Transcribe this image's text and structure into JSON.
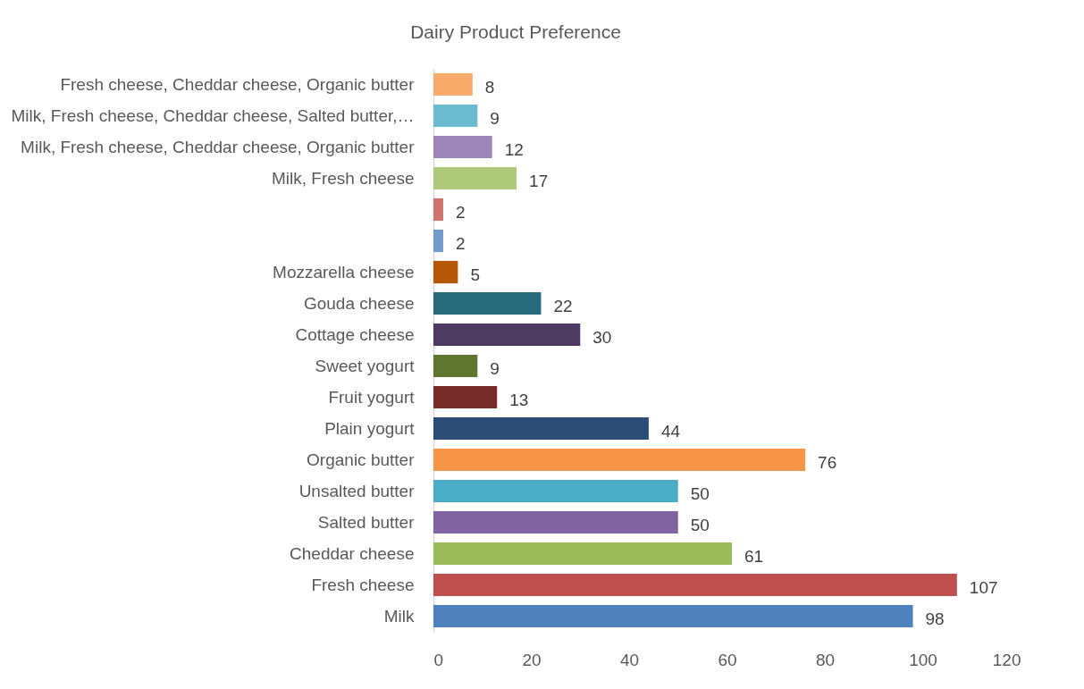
{
  "chart_data": {
    "type": "bar",
    "orientation": "horizontal",
    "title": "Dairy Product Preference",
    "categories": [
      "Fresh cheese, Cheddar cheese, Organic butter",
      "Milk, Fresh cheese, Cheddar cheese, Salted butter,…",
      "Milk, Fresh cheese, Cheddar cheese, Organic butter",
      "Milk, Fresh cheese",
      null,
      null,
      "Mozzarella cheese",
      "Gouda cheese",
      "Cottage cheese",
      "Sweet yogurt",
      "Fruit yogurt",
      "Plain yogurt",
      "Organic butter",
      "Unsalted butter",
      "Salted butter",
      "Cheddar cheese",
      "Fresh cheese",
      "Milk"
    ],
    "values": [
      8,
      9,
      12,
      17,
      2,
      2,
      5,
      22,
      30,
      9,
      13,
      44,
      76,
      50,
      50,
      61,
      107,
      98
    ],
    "colors": [
      "#f9ab6b",
      "#6bbcd0",
      "#9c85b8",
      "#afc97a",
      "#cd7371",
      "#729aca",
      "#b65708",
      "#276a7c",
      "#4d3b62",
      "#5f7530",
      "#772c2a",
      "#2c4d75",
      "#f79646",
      "#4bacc6",
      "#8064a2",
      "#9bbb59",
      "#c0504d",
      "#4f81bd"
    ],
    "xlim": [
      0,
      120
    ],
    "xticks": [
      0,
      20,
      40,
      60,
      80,
      100,
      120
    ],
    "data_labels": true,
    "grid": false,
    "legend": false
  }
}
